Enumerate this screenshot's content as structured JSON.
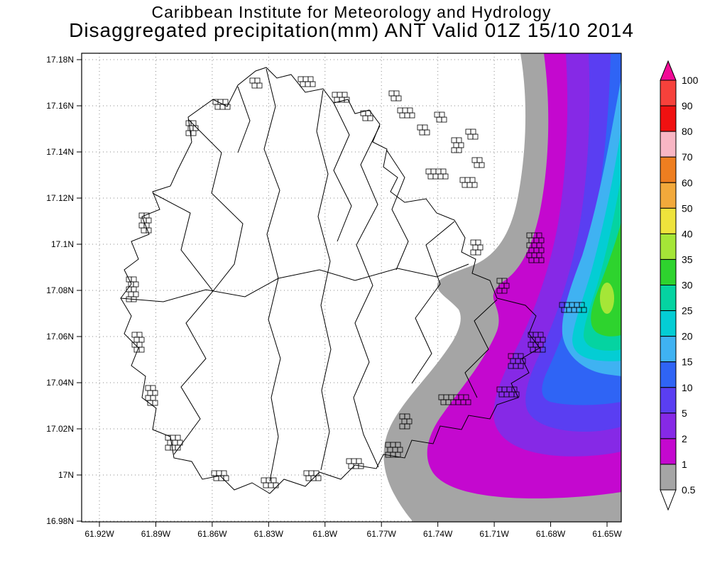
{
  "header": {
    "title_line1": "Caribbean Institute for Meteorology and Hydrology",
    "title_line2": "Disaggregated precipitation(mm) ANT Valid 01Z 15/10 2014"
  },
  "map": {
    "lat_ticks": [
      "17.18N",
      "17.16N",
      "17.14N",
      "17.12N",
      "17.1N",
      "17.08N",
      "17.06N",
      "17.04N",
      "17.02N",
      "17N",
      "16.98N"
    ],
    "lon_ticks": [
      "61.92W",
      "61.89W",
      "61.86W",
      "61.83W",
      "61.8W",
      "61.77W",
      "61.74W",
      "61.71W",
      "61.68W",
      "61.65W"
    ]
  },
  "colorbar": {
    "labels": [
      "100",
      "90",
      "80",
      "70",
      "60",
      "50",
      "40",
      "35",
      "30",
      "25",
      "20",
      "15",
      "10",
      "5",
      "2",
      "1",
      "0.5"
    ],
    "colors_top_to_bottom": [
      "#f20a96",
      "#f6413b",
      "#f01111",
      "#f8b6c4",
      "#ee7e20",
      "#f2a93b",
      "#eee33c",
      "#a5e637",
      "#2ed32e",
      "#05d3a1",
      "#04cdd4",
      "#3fb2f2",
      "#2f64f5",
      "#5a3ef2",
      "#8629e6",
      "#c408cf",
      "#a5a5a5",
      "#ffffff"
    ]
  },
  "chart_data": {
    "type": "heatmap",
    "title": "Disaggregated precipitation(mm) ANT Valid 01Z 15/10 2014",
    "institution": "Caribbean Institute for Meteorology and Hydrology",
    "variable": "precipitation",
    "units": "mm",
    "region_code": "ANT",
    "valid_time": "01Z 15/10 2014",
    "x_axis_ticks_lon": [
      "61.92W",
      "61.89W",
      "61.86W",
      "61.83W",
      "61.8W",
      "61.77W",
      "61.74W",
      "61.71W",
      "61.68W",
      "61.65W"
    ],
    "y_axis_ticks_lat": [
      "17.18N",
      "17.16N",
      "17.14N",
      "17.12N",
      "17.1N",
      "17.08N",
      "17.06N",
      "17.04N",
      "17.02N",
      "17N",
      "16.98N"
    ],
    "contour_levels_mm": [
      0.5,
      1,
      2,
      5,
      10,
      15,
      20,
      25,
      30,
      35,
      40,
      50,
      60,
      70,
      80,
      90,
      100
    ],
    "legend_position": "right",
    "grid": "dotted",
    "observed_max_band_mm": "30-40",
    "max_location_approx": {
      "lon": "61.66W",
      "lat": "17.07N"
    },
    "description": "Precipitation maximum offshore east of Antigua; concentric bands (gray 0.5 mm outermost through magenta, purple, blue, cyan to green core) decrease westward; island interior below 0.5 mm"
  }
}
